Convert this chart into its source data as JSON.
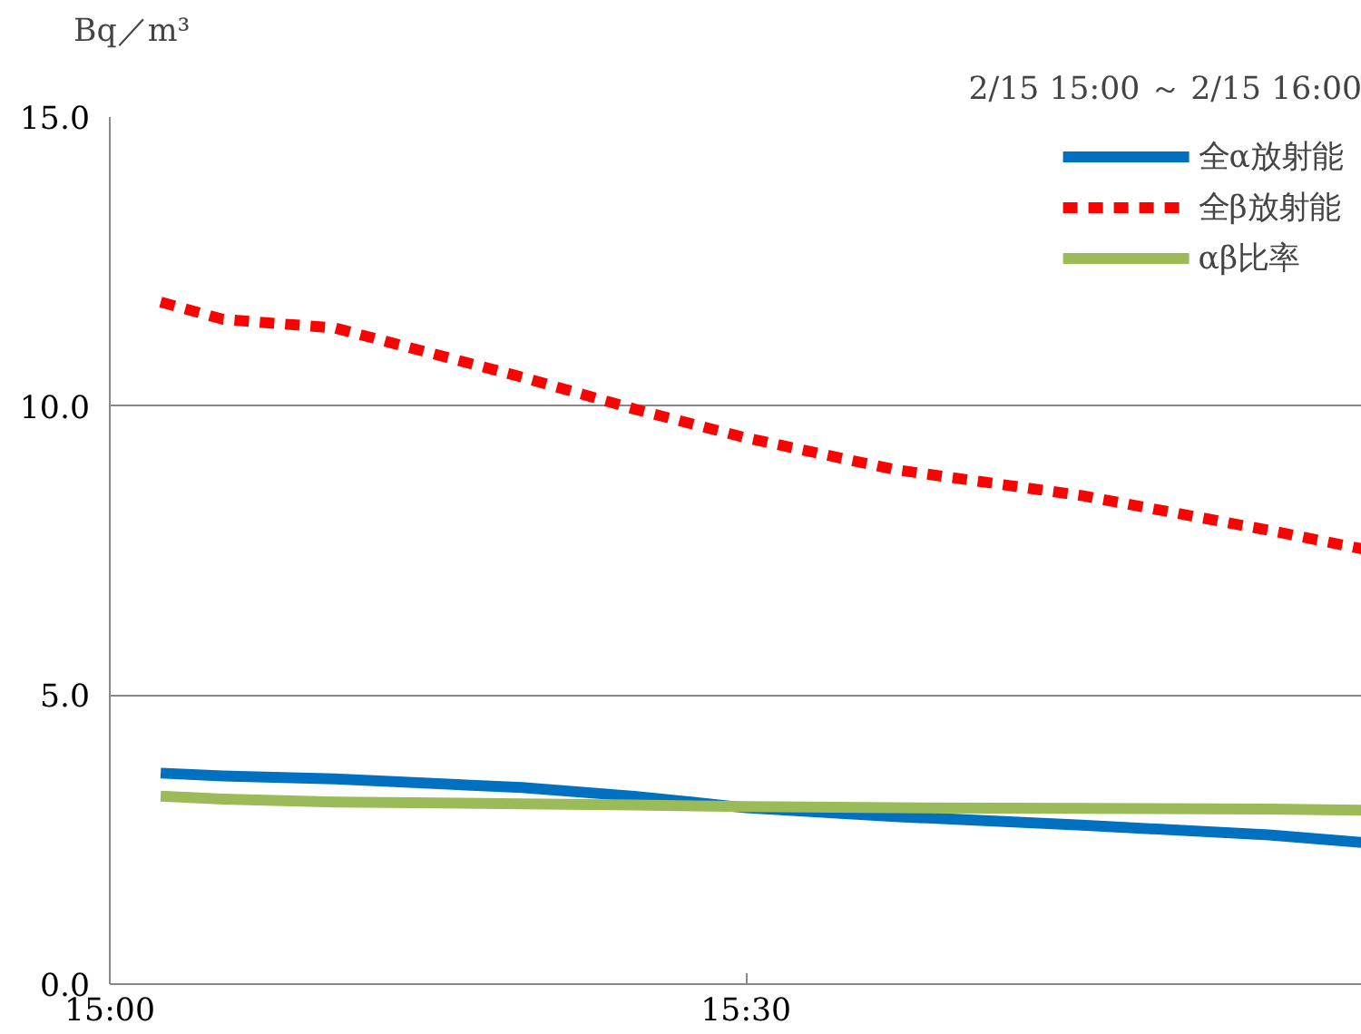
{
  "chart_data": {
    "type": "line",
    "ylabel": "Bq／m³",
    "annotations": [
      "2/15 15:00 ～ 2/15 16:00"
    ],
    "xlim": [
      15,
      15.984
    ],
    "ylim": [
      0,
      15
    ],
    "xticks": [
      {
        "value": 15,
        "label": "15:00"
      },
      {
        "value": 15.5,
        "label": "15:30"
      }
    ],
    "yticks": [
      {
        "value": 0,
        "label": "0.0"
      },
      {
        "value": 5,
        "label": "5.0"
      },
      {
        "value": 10,
        "label": "10.0"
      },
      {
        "value": 15,
        "label": "15.0"
      }
    ],
    "grid": "y",
    "legend": "top right",
    "x": [
      15.04,
      15.089,
      15.177,
      15.324,
      15.412,
      15.5,
      15.617,
      15.764,
      15.911,
      15.984
    ],
    "series": [
      {
        "name": "全α放射能",
        "color": "#0070c0",
        "line_style": "solid",
        "values": [
          3.65,
          3.6,
          3.55,
          3.4,
          3.25,
          3.05,
          2.9,
          2.75,
          2.58,
          2.45
        ]
      },
      {
        "name": "全β放射能",
        "color": "#ff0000",
        "line_style": "dashed",
        "values": [
          11.8,
          11.5,
          11.35,
          10.5,
          9.95,
          9.45,
          8.9,
          8.45,
          7.85,
          7.53
        ]
      },
      {
        "name": "αβ比率",
        "color": "#9bbb59",
        "line_style": "solid",
        "values": [
          3.25,
          3.2,
          3.15,
          3.12,
          3.1,
          3.07,
          3.05,
          3.04,
          3.03,
          3.01
        ]
      }
    ]
  }
}
